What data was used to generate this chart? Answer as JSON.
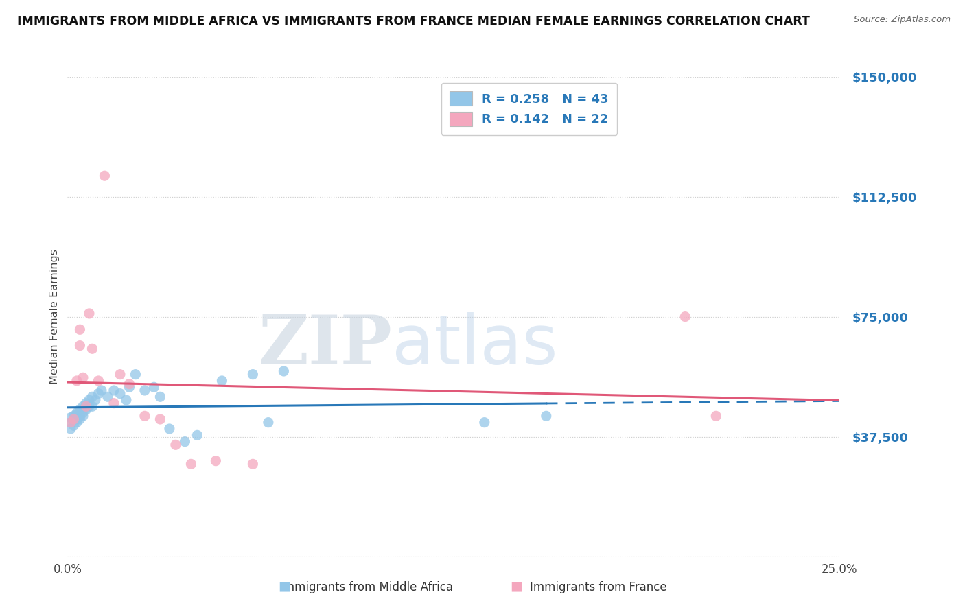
{
  "title": "IMMIGRANTS FROM MIDDLE AFRICA VS IMMIGRANTS FROM FRANCE MEDIAN FEMALE EARNINGS CORRELATION CHART",
  "source": "Source: ZipAtlas.com",
  "ylabel": "Median Female Earnings",
  "watermark_part1": "ZIP",
  "watermark_part2": "atlas",
  "series1_label": "Immigrants from Middle Africa",
  "series2_label": "Immigrants from France",
  "R1": 0.258,
  "N1": 43,
  "R2": 0.142,
  "N2": 22,
  "color1": "#93c6e8",
  "color2": "#f4a7be",
  "trendline1_color": "#2878b8",
  "trendline2_color": "#e05878",
  "xlim": [
    0.0,
    0.25
  ],
  "ylim": [
    0,
    150000
  ],
  "yticks": [
    0,
    37500,
    75000,
    112500,
    150000
  ],
  "xticks": [
    0.0,
    0.05,
    0.1,
    0.15,
    0.2,
    0.25
  ],
  "background": "#ffffff",
  "grid_color": "#d0d0d0",
  "blue_x": [
    0.001,
    0.001,
    0.001,
    0.002,
    0.002,
    0.002,
    0.003,
    0.003,
    0.003,
    0.003,
    0.004,
    0.004,
    0.004,
    0.005,
    0.005,
    0.005,
    0.006,
    0.006,
    0.007,
    0.007,
    0.008,
    0.008,
    0.009,
    0.01,
    0.011,
    0.013,
    0.015,
    0.017,
    0.019,
    0.02,
    0.022,
    0.025,
    0.028,
    0.03,
    0.033,
    0.038,
    0.042,
    0.05,
    0.06,
    0.065,
    0.07,
    0.135,
    0.155
  ],
  "blue_y": [
    42000,
    40000,
    43500,
    43000,
    44000,
    41000,
    45000,
    43000,
    42000,
    44500,
    46000,
    44000,
    43000,
    47000,
    45000,
    44000,
    48000,
    46000,
    49000,
    47000,
    50000,
    47000,
    49000,
    51000,
    52000,
    50000,
    52000,
    51000,
    49000,
    53000,
    57000,
    52000,
    53000,
    50000,
    40000,
    36000,
    38000,
    55000,
    57000,
    42000,
    58000,
    42000,
    44000
  ],
  "pink_x": [
    0.001,
    0.002,
    0.003,
    0.004,
    0.004,
    0.005,
    0.006,
    0.007,
    0.008,
    0.01,
    0.012,
    0.015,
    0.017,
    0.02,
    0.025,
    0.03,
    0.035,
    0.04,
    0.048,
    0.06,
    0.2,
    0.21
  ],
  "pink_y": [
    42000,
    43000,
    55000,
    66000,
    71000,
    56000,
    47000,
    76000,
    65000,
    55000,
    119000,
    48000,
    57000,
    54000,
    44000,
    43000,
    35000,
    29000,
    30000,
    29000,
    75000,
    44000
  ],
  "legend_text_color": "#2878b8",
  "legend_label_color": "#222222",
  "ytick_color": "#2878b8"
}
